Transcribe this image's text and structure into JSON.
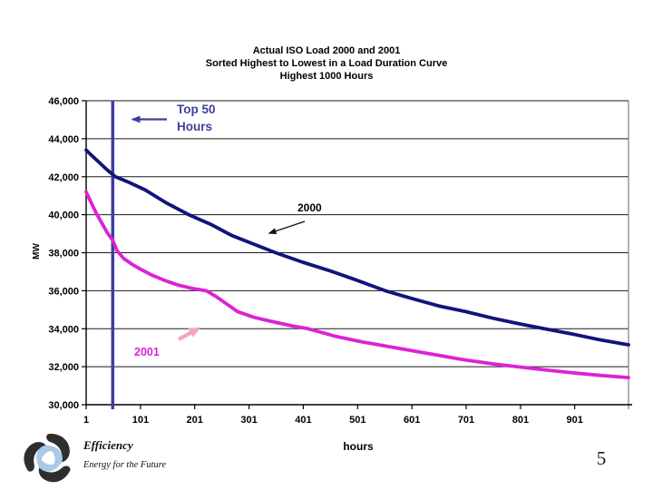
{
  "slide": {
    "title_line1": "Actual ISO Load 2000 and 2001",
    "title_line2": "Sorted Highest to Lowest in a Load Duration Curve",
    "title_line3": "Highest 1000 Hours",
    "page_number": "5"
  },
  "footer": {
    "brand": "Efficiency",
    "tagline": "Energy for the Future"
  },
  "annotations": {
    "top50_line1": "Top 50",
    "top50_line2": "Hours",
    "series_2000_label": "2000",
    "series_2001_label": "2001"
  },
  "colors": {
    "series_2000": "#13137B",
    "series_2001": "#DC22D4",
    "marker_line": "#3E3E9E",
    "annotation_2000_arrow": "#111111",
    "annotation_2001_arrow": "#F2A3CB",
    "grid_line": "#1a1a1a",
    "axis_line": "#000000",
    "plot_right_border": "#808080",
    "logo_dark": "#2e2e2e",
    "logo_light": "#a9c9e6"
  },
  "chart_data": {
    "type": "line",
    "title": "Actual ISO Load 2000 and 2001 — Sorted Highest to Lowest in a Load Duration Curve — Highest 1000 Hours",
    "xlabel": "hours",
    "ylabel": "MW",
    "xlim": [
      1,
      1000
    ],
    "ylim": [
      30000,
      46000
    ],
    "xticks": [
      1,
      101,
      201,
      301,
      401,
      501,
      601,
      701,
      801,
      901
    ],
    "yticks": [
      30000,
      32000,
      34000,
      36000,
      38000,
      40000,
      42000,
      44000,
      46000
    ],
    "grid": true,
    "legend_position": "inline-annotations",
    "marker_line_x": 50,
    "marker_line_label": "Top 50 Hours",
    "series": [
      {
        "name": "2000",
        "color": "#13137B",
        "points": [
          [
            1,
            43400
          ],
          [
            10,
            43150
          ],
          [
            25,
            42750
          ],
          [
            40,
            42350
          ],
          [
            55,
            42000
          ],
          [
            80,
            41700
          ],
          [
            110,
            41300
          ],
          [
            150,
            40600
          ],
          [
            190,
            40000
          ],
          [
            230,
            39500
          ],
          [
            270,
            38900
          ],
          [
            310,
            38450
          ],
          [
            350,
            38000
          ],
          [
            400,
            37500
          ],
          [
            450,
            37050
          ],
          [
            500,
            36550
          ],
          [
            552,
            36000
          ],
          [
            600,
            35600
          ],
          [
            650,
            35200
          ],
          [
            700,
            34900
          ],
          [
            750,
            34550
          ],
          [
            800,
            34250
          ],
          [
            845,
            34000
          ],
          [
            900,
            33700
          ],
          [
            950,
            33400
          ],
          [
            1000,
            33150
          ]
        ]
      },
      {
        "name": "2001",
        "color": "#DC22D4",
        "points": [
          [
            1,
            41200
          ],
          [
            5,
            40950
          ],
          [
            10,
            40650
          ],
          [
            15,
            40350
          ],
          [
            21,
            40000
          ],
          [
            30,
            39550
          ],
          [
            40,
            39050
          ],
          [
            50,
            38650
          ],
          [
            58,
            38100
          ],
          [
            70,
            37700
          ],
          [
            85,
            37400
          ],
          [
            100,
            37150
          ],
          [
            120,
            36850
          ],
          [
            145,
            36550
          ],
          [
            170,
            36300
          ],
          [
            200,
            36100
          ],
          [
            222,
            36000
          ],
          [
            240,
            35700
          ],
          [
            260,
            35300
          ],
          [
            280,
            34900
          ],
          [
            310,
            34600
          ],
          [
            340,
            34400
          ],
          [
            380,
            34150
          ],
          [
            410,
            34000
          ],
          [
            460,
            33600
          ],
          [
            510,
            33300
          ],
          [
            560,
            33050
          ],
          [
            610,
            32800
          ],
          [
            660,
            32550
          ],
          [
            700,
            32350
          ],
          [
            750,
            32150
          ],
          [
            795,
            32000
          ],
          [
            850,
            31820
          ],
          [
            900,
            31670
          ],
          [
            950,
            31540
          ],
          [
            1000,
            31430
          ]
        ]
      }
    ]
  }
}
